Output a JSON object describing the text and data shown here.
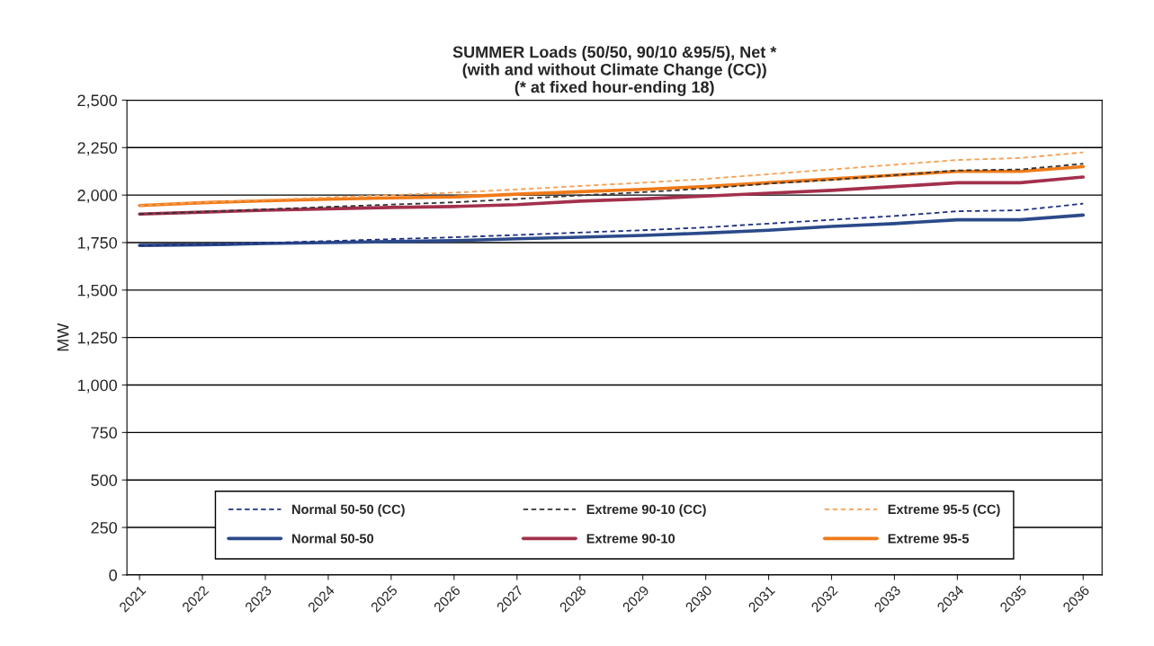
{
  "chart_data": {
    "type": "line",
    "title": "SUMMER Loads (50/50, 90/10 &95/5), Net *\n(with and without Climate Change (CC))\n(* at fixed hour-ending 18)",
    "ylabel": "MW",
    "categories": [
      "2021",
      "2022",
      "2023",
      "2024",
      "2025",
      "2026",
      "2027",
      "2028",
      "2029",
      "2030",
      "2031",
      "2032",
      "2033",
      "2034",
      "2035",
      "2036"
    ],
    "series": [
      {
        "name": "Normal 50-50 (CC)",
        "color": "#1f2f80",
        "line_style": "dashed",
        "values": [
          1735,
          1740,
          1748,
          1758,
          1768,
          1778,
          1790,
          1803,
          1815,
          1830,
          1850,
          1870,
          1890,
          1915,
          1920,
          1955
        ]
      },
      {
        "name": "Normal 50-50",
        "color": "#2b4a8a",
        "line_style": "solid",
        "values": [
          1735,
          1738,
          1745,
          1750,
          1755,
          1760,
          1770,
          1778,
          1788,
          1800,
          1815,
          1835,
          1850,
          1870,
          1870,
          1895
        ]
      },
      {
        "name": "Extreme 90-10 (CC)",
        "color": "#333333",
        "line_style": "dashed",
        "values": [
          1900,
          1912,
          1925,
          1938,
          1950,
          1962,
          1980,
          1998,
          2015,
          2035,
          2060,
          2080,
          2105,
          2130,
          2135,
          2165
        ]
      },
      {
        "name": "Extreme 90-10",
        "color": "#a3304c",
        "line_style": "solid",
        "values": [
          1900,
          1910,
          1920,
          1928,
          1935,
          1940,
          1950,
          1968,
          1980,
          1995,
          2010,
          2025,
          2045,
          2065,
          2065,
          2095
        ]
      },
      {
        "name": "Extreme 95-5 (CC)",
        "color": "#f5a054",
        "line_style": "dashed",
        "values": [
          1945,
          1962,
          1975,
          1988,
          2000,
          2013,
          2030,
          2048,
          2065,
          2085,
          2110,
          2135,
          2160,
          2185,
          2195,
          2225
        ]
      },
      {
        "name": "Extreme 95-5",
        "color": "#f07a18",
        "line_style": "solid",
        "values": [
          1945,
          1960,
          1970,
          1978,
          1985,
          1990,
          2005,
          2018,
          2030,
          2045,
          2065,
          2085,
          2105,
          2125,
          2125,
          2150
        ]
      }
    ],
    "ylim": [
      0,
      2500
    ],
    "yticks": [
      0,
      {
        "value": 250,
        "label": "250"
      },
      {
        "value": 500,
        "label": "500"
      },
      {
        "value": 750,
        "label": "750"
      },
      {
        "value": 1000,
        "label": "1,000"
      },
      {
        "value": 1250,
        "label": "1,250"
      },
      {
        "value": 1500,
        "label": "1,500"
      },
      {
        "value": 1750,
        "label": "1,750"
      },
      {
        "value": 2000,
        "label": "2,000"
      },
      {
        "value": 2250,
        "label": "2,250"
      },
      {
        "value": 2500,
        "label": "2,500"
      }
    ],
    "grid": "y",
    "legend": "bottom",
    "marker": "none"
  }
}
